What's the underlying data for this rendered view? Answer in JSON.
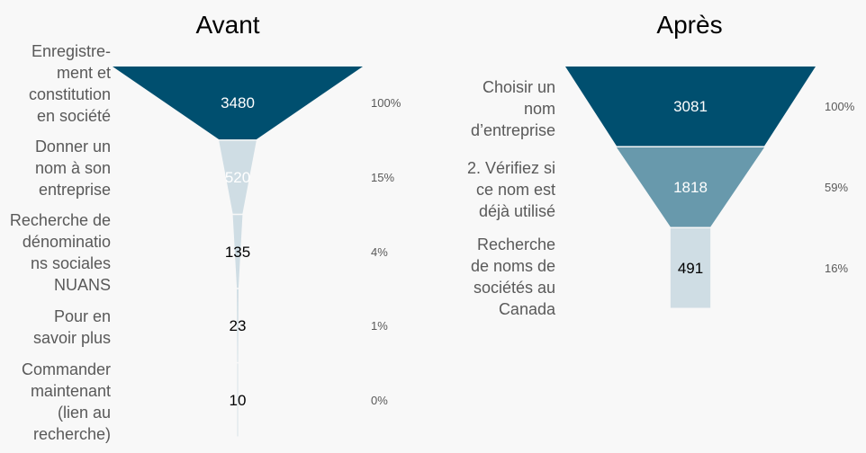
{
  "chart_data": [
    {
      "type": "funnel",
      "title": "Avant",
      "categories": [
        "Enregistre-\nment et\nconstitution\nen société",
        "Donner un\nnom à son\nentreprise",
        "Recherche de\ndénominatio\nns sociales\nNUANS",
        "Pour en\nsavoir plus",
        "Commander\nmaintenant\n(lien au\nrecherche)"
      ],
      "values": [
        3480,
        520,
        135,
        23,
        10
      ],
      "percentages": [
        "100%",
        "15%",
        "4%",
        "1%",
        "0%"
      ],
      "colors": [
        "#004f6f",
        "#cfdde4",
        "#cfdde4",
        "#cfdde4",
        "#cfdde4"
      ],
      "value_label_colors": [
        "#ffffff",
        "#ffffff",
        "#000000",
        "#000000",
        "#000000"
      ]
    },
    {
      "type": "funnel",
      "title": "Après",
      "categories": [
        "Choisir un\nnom\nd’entreprise",
        "2. Vérifiez si\nce nom est\ndéjà utilisé",
        "Recherche\nde noms de\nsociétés au\nCanada"
      ],
      "values": [
        3081,
        1818,
        491
      ],
      "percentages": [
        "100%",
        "59%",
        "16%"
      ],
      "colors": [
        "#004f6f",
        "#6899ac",
        "#cfdde4"
      ],
      "value_label_colors": [
        "#ffffff",
        "#ffffff",
        "#000000"
      ]
    }
  ]
}
